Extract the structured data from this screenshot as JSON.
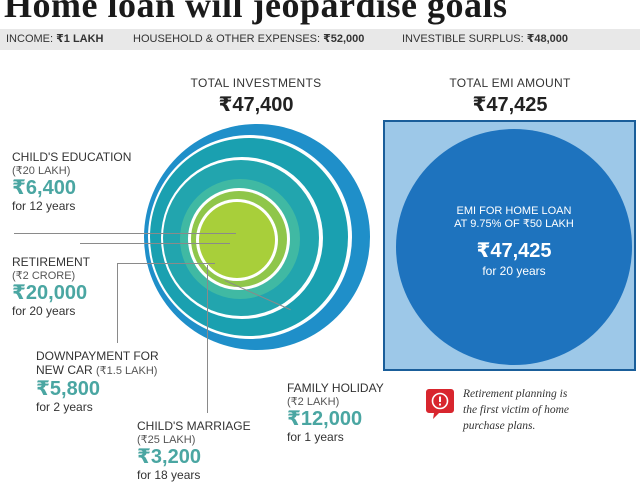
{
  "title": "Home loan will jeopardise goals",
  "summary": {
    "income_label": "INCOME:",
    "income_value": "₹1 LAKH",
    "expenses_label": "HOUSEHOLD & OTHER EXPENSES:",
    "expenses_value": "₹52,000",
    "surplus_label": "INVESTIBLE SURPLUS:",
    "surplus_value": "₹48,000"
  },
  "investments": {
    "heading": "TOTAL INVESTMENTS",
    "total": "₹47,400",
    "goals": [
      {
        "name": "CHILD'S EDUCATION",
        "cost": "(₹20 LAKH)",
        "amount": "₹6,400",
        "duration": "for 12 years"
      },
      {
        "name": "RETIREMENT",
        "cost": "(₹2 CRORE)",
        "amount": "₹20,000",
        "duration": "for 20 years"
      },
      {
        "name_line1": "DOWNPAYMENT FOR",
        "name_line2": "NEW CAR",
        "cost": "(₹1.5 LAKH)",
        "amount": "₹5,800",
        "duration": "for 2 years"
      },
      {
        "name": "CHILD'S MARRIAGE",
        "cost": "(₹25 LAKH)",
        "amount": "₹3,200",
        "duration": "for 18 years"
      },
      {
        "name": "FAMILY HOLIDAY",
        "cost": "(₹2 LAKH)",
        "amount": "₹12,000",
        "duration": "for 1 years"
      }
    ]
  },
  "emi": {
    "heading": "TOTAL EMI AMOUNT",
    "total": "₹47,425",
    "circle_line1": "EMI FOR HOME LOAN",
    "circle_line2": "AT 9.75% OF ₹50 LAKH",
    "circle_amount": "₹47,425",
    "circle_duration": "for 20 years"
  },
  "note": {
    "line1": "Retirement planning is",
    "line2": "the first victim of home",
    "line3": "purchase plans."
  },
  "colors": {
    "ring_outer": "#1f8fc9",
    "ring_2": "#1aa0b0",
    "ring_3": "#34b5a8",
    "ring_4": "#8fc64a",
    "core": "#a8cf3a",
    "emi_box": "#9dc8e8",
    "emi_circle": "#1e73be",
    "accent_amount": "#4aa6a2",
    "alert": "#d8262e"
  }
}
